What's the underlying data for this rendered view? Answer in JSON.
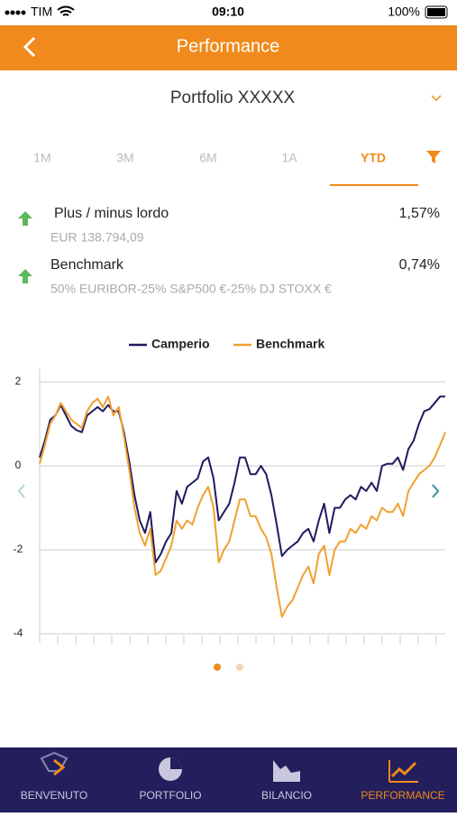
{
  "status_bar": {
    "carrier": "TIM",
    "time": "09:10",
    "battery": "100%"
  },
  "header": {
    "title": "Performance"
  },
  "portfolio": {
    "name": "Portfolio XXXXX"
  },
  "tabs": {
    "items": [
      "1M",
      "3M",
      "6M",
      "1A",
      "YTD"
    ],
    "active": 4
  },
  "rows": [
    {
      "label": "Plus / minus lordo",
      "sub": "EUR 138.794,09",
      "value": "1,57%"
    },
    {
      "label": "Benchmark",
      "sub": "50% EURIBOR-25% S&P500 €-25% DJ STOXX €",
      "value": "0,74%"
    }
  ],
  "chart_data": {
    "type": "line",
    "ylim": [
      -4,
      2
    ],
    "yticks": [
      2,
      0,
      -2,
      -4
    ],
    "grid": true,
    "series": [
      {
        "name": "Camperio",
        "color": "#1f1a5e",
        "values": [
          0.2,
          0.6,
          1.1,
          1.2,
          1.45,
          1.2,
          0.95,
          0.85,
          0.8,
          1.2,
          1.3,
          1.4,
          1.3,
          1.45,
          1.3,
          1.3,
          0.8,
          0.1,
          -0.7,
          -1.3,
          -1.6,
          -1.1,
          -2.3,
          -2.1,
          -1.8,
          -1.6,
          -0.6,
          -0.9,
          -0.5,
          -0.4,
          -0.3,
          0.1,
          0.2,
          -0.3,
          -1.3,
          -1.1,
          -0.9,
          -0.4,
          0.2,
          0.2,
          -0.2,
          -0.2,
          0.0,
          -0.2,
          -0.7,
          -1.4,
          -2.15,
          -2.0,
          -1.9,
          -1.8,
          -1.6,
          -1.5,
          -1.8,
          -1.3,
          -0.9,
          -1.6,
          -1.0,
          -1.0,
          -0.8,
          -0.7,
          -0.8,
          -0.5,
          -0.6,
          -0.4,
          -0.6,
          0.0,
          0.05,
          0.05,
          0.2,
          -0.1,
          0.4,
          0.6,
          1.0,
          1.3,
          1.35,
          1.5,
          1.65,
          1.65
        ]
      },
      {
        "name": "Benchmark",
        "color": "#f0a030",
        "values": [
          0.05,
          0.5,
          1.0,
          1.2,
          1.5,
          1.3,
          1.1,
          1.0,
          0.9,
          1.3,
          1.5,
          1.6,
          1.4,
          1.65,
          1.2,
          1.4,
          0.7,
          -0.1,
          -1.0,
          -1.6,
          -1.9,
          -1.5,
          -2.6,
          -2.5,
          -2.2,
          -1.9,
          -1.3,
          -1.5,
          -1.3,
          -1.4,
          -1.0,
          -0.7,
          -0.5,
          -1.0,
          -2.3,
          -2.0,
          -1.8,
          -1.3,
          -0.8,
          -0.8,
          -1.2,
          -1.2,
          -1.5,
          -1.7,
          -2.1,
          -2.9,
          -3.6,
          -3.35,
          -3.2,
          -2.9,
          -2.6,
          -2.4,
          -2.8,
          -2.1,
          -1.9,
          -2.6,
          -2.0,
          -1.8,
          -1.8,
          -1.5,
          -1.6,
          -1.4,
          -1.5,
          -1.2,
          -1.3,
          -1.0,
          -1.1,
          -1.1,
          -0.9,
          -1.2,
          -0.6,
          -0.4,
          -0.2,
          -0.1,
          0.0,
          0.2,
          0.5,
          0.8
        ]
      }
    ]
  },
  "nav": {
    "items": [
      "BENVENUTO",
      "PORTFOLIO",
      "BILANCIO",
      "PERFORMANCE"
    ],
    "active": 3
  }
}
